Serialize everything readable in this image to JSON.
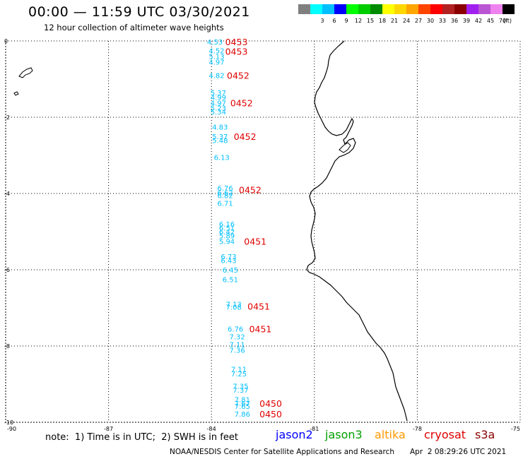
{
  "header": {
    "title": "00:00 — 11:59 UTC 03/30/2021",
    "subtitle": "12 hour collection of altimeter wave heights"
  },
  "footer": {
    "note": "note:  1) Time is in UTC;  2) SWH is in feet",
    "credit": "NOAA/NESDIS Center for Satellite Applications and Research",
    "generated": "Apr  2 08:29:26 UTC 2021"
  },
  "satellites": [
    {
      "name": "jason2",
      "color": "#0000ff"
    },
    {
      "name": "jason3",
      "color": "#00a000"
    },
    {
      "name": "altika",
      "color": "#ff9900"
    },
    {
      "name": "cryosat",
      "color": "#e00000"
    },
    {
      "name": "s3a",
      "color": "#8b0000"
    }
  ],
  "color_scale": {
    "unit": "(ft)",
    "bins": [
      {
        "label": "",
        "color": "#7f7f7f"
      },
      {
        "label": "3",
        "color": "#00ffff"
      },
      {
        "label": "6",
        "color": "#00bfff"
      },
      {
        "label": "9",
        "color": "#0000ff"
      },
      {
        "label": "12",
        "color": "#00ff00"
      },
      {
        "label": "15",
        "color": "#00cd00"
      },
      {
        "label": "18",
        "color": "#008b00"
      },
      {
        "label": "21",
        "color": "#ffff00"
      },
      {
        "label": "24",
        "color": "#ffd700"
      },
      {
        "label": "27",
        "color": "#ffa500"
      },
      {
        "label": "30",
        "color": "#ff4500"
      },
      {
        "label": "33",
        "color": "#ff0000"
      },
      {
        "label": "36",
        "color": "#b22222"
      },
      {
        "label": "39",
        "color": "#8b0000"
      },
      {
        "label": "42",
        "color": "#a020f0"
      },
      {
        "label": "45",
        "color": "#ba55d3"
      },
      {
        "label": "70",
        "color": "#ee82ee"
      },
      {
        "label": "",
        "color": "#000000"
      }
    ]
  },
  "map": {
    "lon_range": [
      -90,
      -75
    ],
    "lat_range": [
      -10,
      0
    ],
    "lon_ticks": [
      "-90",
      "-87",
      "-84",
      "-81",
      "-78",
      "-75"
    ],
    "lat_ticks": [
      "0",
      "-2",
      "-4",
      "-6",
      "-8",
      "-10"
    ],
    "track_color": "#00bfff",
    "time_color": "#e00000",
    "observations": [
      {
        "lon": -83.9,
        "lat": -0.02,
        "swh": "4.53"
      },
      {
        "lon": -83.85,
        "lat": -0.25,
        "swh": "4.52"
      },
      {
        "lon": -83.85,
        "lat": -0.4,
        "swh": "5.13"
      },
      {
        "lon": -83.85,
        "lat": -0.55,
        "swh": "4.97"
      },
      {
        "lon": -83.85,
        "lat": -0.9,
        "swh": "4.82"
      },
      {
        "lon": -83.8,
        "lat": -1.35,
        "swh": "5.37"
      },
      {
        "lon": -83.8,
        "lat": -1.47,
        "swh": "4.99"
      },
      {
        "lon": -83.8,
        "lat": -1.62,
        "swh": "4.97"
      },
      {
        "lon": -83.8,
        "lat": -1.75,
        "swh": "5.23"
      },
      {
        "lon": -83.8,
        "lat": -1.85,
        "swh": "5.34"
      },
      {
        "lon": -83.75,
        "lat": -2.25,
        "swh": "4.83"
      },
      {
        "lon": -83.75,
        "lat": -2.5,
        "swh": "5.37"
      },
      {
        "lon": -83.75,
        "lat": -2.6,
        "swh": "5.48"
      },
      {
        "lon": -83.7,
        "lat": -3.05,
        "swh": "6.13"
      },
      {
        "lon": -83.6,
        "lat": -3.85,
        "swh": "6.76"
      },
      {
        "lon": -83.6,
        "lat": -3.97,
        "swh": "6.62"
      },
      {
        "lon": -83.6,
        "lat": -4.05,
        "swh": "6.82"
      },
      {
        "lon": -83.6,
        "lat": -4.25,
        "swh": "6.71"
      },
      {
        "lon": -83.55,
        "lat": -4.8,
        "swh": "6.16"
      },
      {
        "lon": -83.55,
        "lat": -4.9,
        "swh": "6.51"
      },
      {
        "lon": -83.55,
        "lat": -5.0,
        "swh": "6.42"
      },
      {
        "lon": -83.55,
        "lat": -5.1,
        "swh": "5.89"
      },
      {
        "lon": -83.55,
        "lat": -5.25,
        "swh": "5.94"
      },
      {
        "lon": -83.5,
        "lat": -5.65,
        "swh": "6.73"
      },
      {
        "lon": -83.5,
        "lat": -5.75,
        "swh": "6.43"
      },
      {
        "lon": -83.45,
        "lat": -6.0,
        "swh": "6.45"
      },
      {
        "lon": -83.45,
        "lat": -6.25,
        "swh": "6.51"
      },
      {
        "lon": -83.35,
        "lat": -6.9,
        "swh": "7.13"
      },
      {
        "lon": -83.35,
        "lat": -6.97,
        "swh": "7.08"
      },
      {
        "lon": -83.3,
        "lat": -7.55,
        "swh": "6.76"
      },
      {
        "lon": -83.25,
        "lat": -7.75,
        "swh": "7.32"
      },
      {
        "lon": -83.25,
        "lat": -7.95,
        "swh": "7.11"
      },
      {
        "lon": -83.25,
        "lat": -8.1,
        "swh": "7.36"
      },
      {
        "lon": -83.2,
        "lat": -8.6,
        "swh": "7.11"
      },
      {
        "lon": -83.2,
        "lat": -8.72,
        "swh": "7.25"
      },
      {
        "lon": -83.15,
        "lat": -9.05,
        "swh": "7.35"
      },
      {
        "lon": -83.15,
        "lat": -9.15,
        "swh": "7.37"
      },
      {
        "lon": -83.1,
        "lat": -9.4,
        "swh": "7.81"
      },
      {
        "lon": -83.1,
        "lat": -9.5,
        "swh": "7.67"
      },
      {
        "lon": -83.1,
        "lat": -9.57,
        "swh": "7.65"
      },
      {
        "lon": -83.1,
        "lat": -9.78,
        "swh": "7.86"
      }
    ],
    "times": [
      {
        "lon": -83.6,
        "lat": -0.02,
        "time": "0453"
      },
      {
        "lon": -83.6,
        "lat": -0.27,
        "time": "0453"
      },
      {
        "lon": -83.55,
        "lat": -0.9,
        "time": "0452"
      },
      {
        "lon": -83.45,
        "lat": -1.62,
        "time": "0452"
      },
      {
        "lon": -83.35,
        "lat": -2.5,
        "time": "0452"
      },
      {
        "lon": -83.2,
        "lat": -3.9,
        "time": "0452"
      },
      {
        "lon": -83.05,
        "lat": -5.25,
        "time": "0451"
      },
      {
        "lon": -82.95,
        "lat": -6.95,
        "time": "0451"
      },
      {
        "lon": -82.9,
        "lat": -7.55,
        "time": "0451"
      },
      {
        "lon": -82.6,
        "lat": -9.5,
        "time": "0450"
      },
      {
        "lon": -82.6,
        "lat": -9.78,
        "time": "0450"
      }
    ]
  }
}
